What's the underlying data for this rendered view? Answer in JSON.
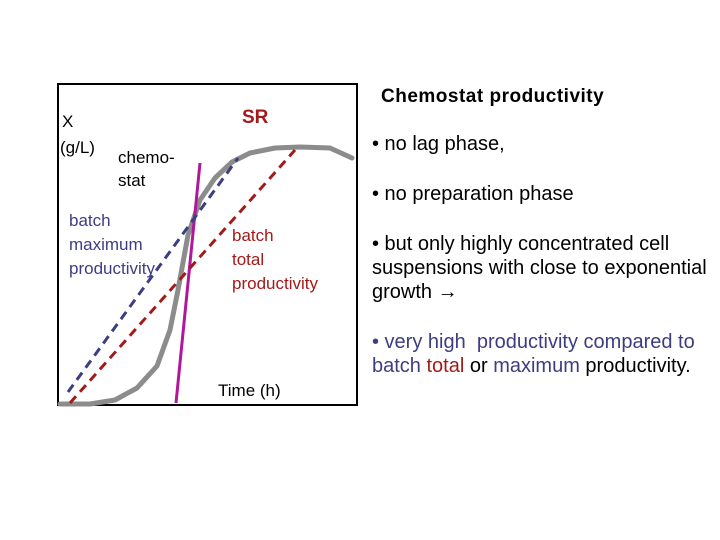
{
  "diagram": {
    "y_axis_label_line1": "X",
    "y_axis_label_line2": "(g/L)",
    "x_axis_label": "Time (h)",
    "sr_label": "SR",
    "chemostat_label_line1": "chemo-",
    "chemostat_label_line2": "stat",
    "batch_max_line1": "batch",
    "batch_max_line2": "maximum",
    "batch_max_line3": "productivity",
    "batch_total_line1": "batch",
    "batch_total_line2": "total",
    "batch_total_line3": "productivity",
    "colors": {
      "growth_curve": "#8c8c8c",
      "chemostat_line": "#b0179a",
      "batch_max_line": "#3d3d82",
      "batch_total_line": "#a31a1a",
      "sr_text": "#a31a1a",
      "batch_total_text": "#a31a1a",
      "frame": "#000000"
    }
  },
  "panel": {
    "title": "Chemostat productivity",
    "bullet1": "• no lag phase,",
    "bullet2": "• no preparation phase",
    "bullet3": "• but only highly concentrated cell suspensions with close to exponential growth",
    "bullet3_arrow": "→",
    "bullet4_part1": "• very high  productivity compared to batch ",
    "bullet4_total": "total",
    "bullet4_part2": " or ",
    "bullet4_maximum": "maximum",
    "bullet4_part3": " productivity.",
    "colors": {
      "accent_productivity": "#3d3d82",
      "total": "#a31a1a",
      "maximum": "#3d3d82"
    }
  }
}
